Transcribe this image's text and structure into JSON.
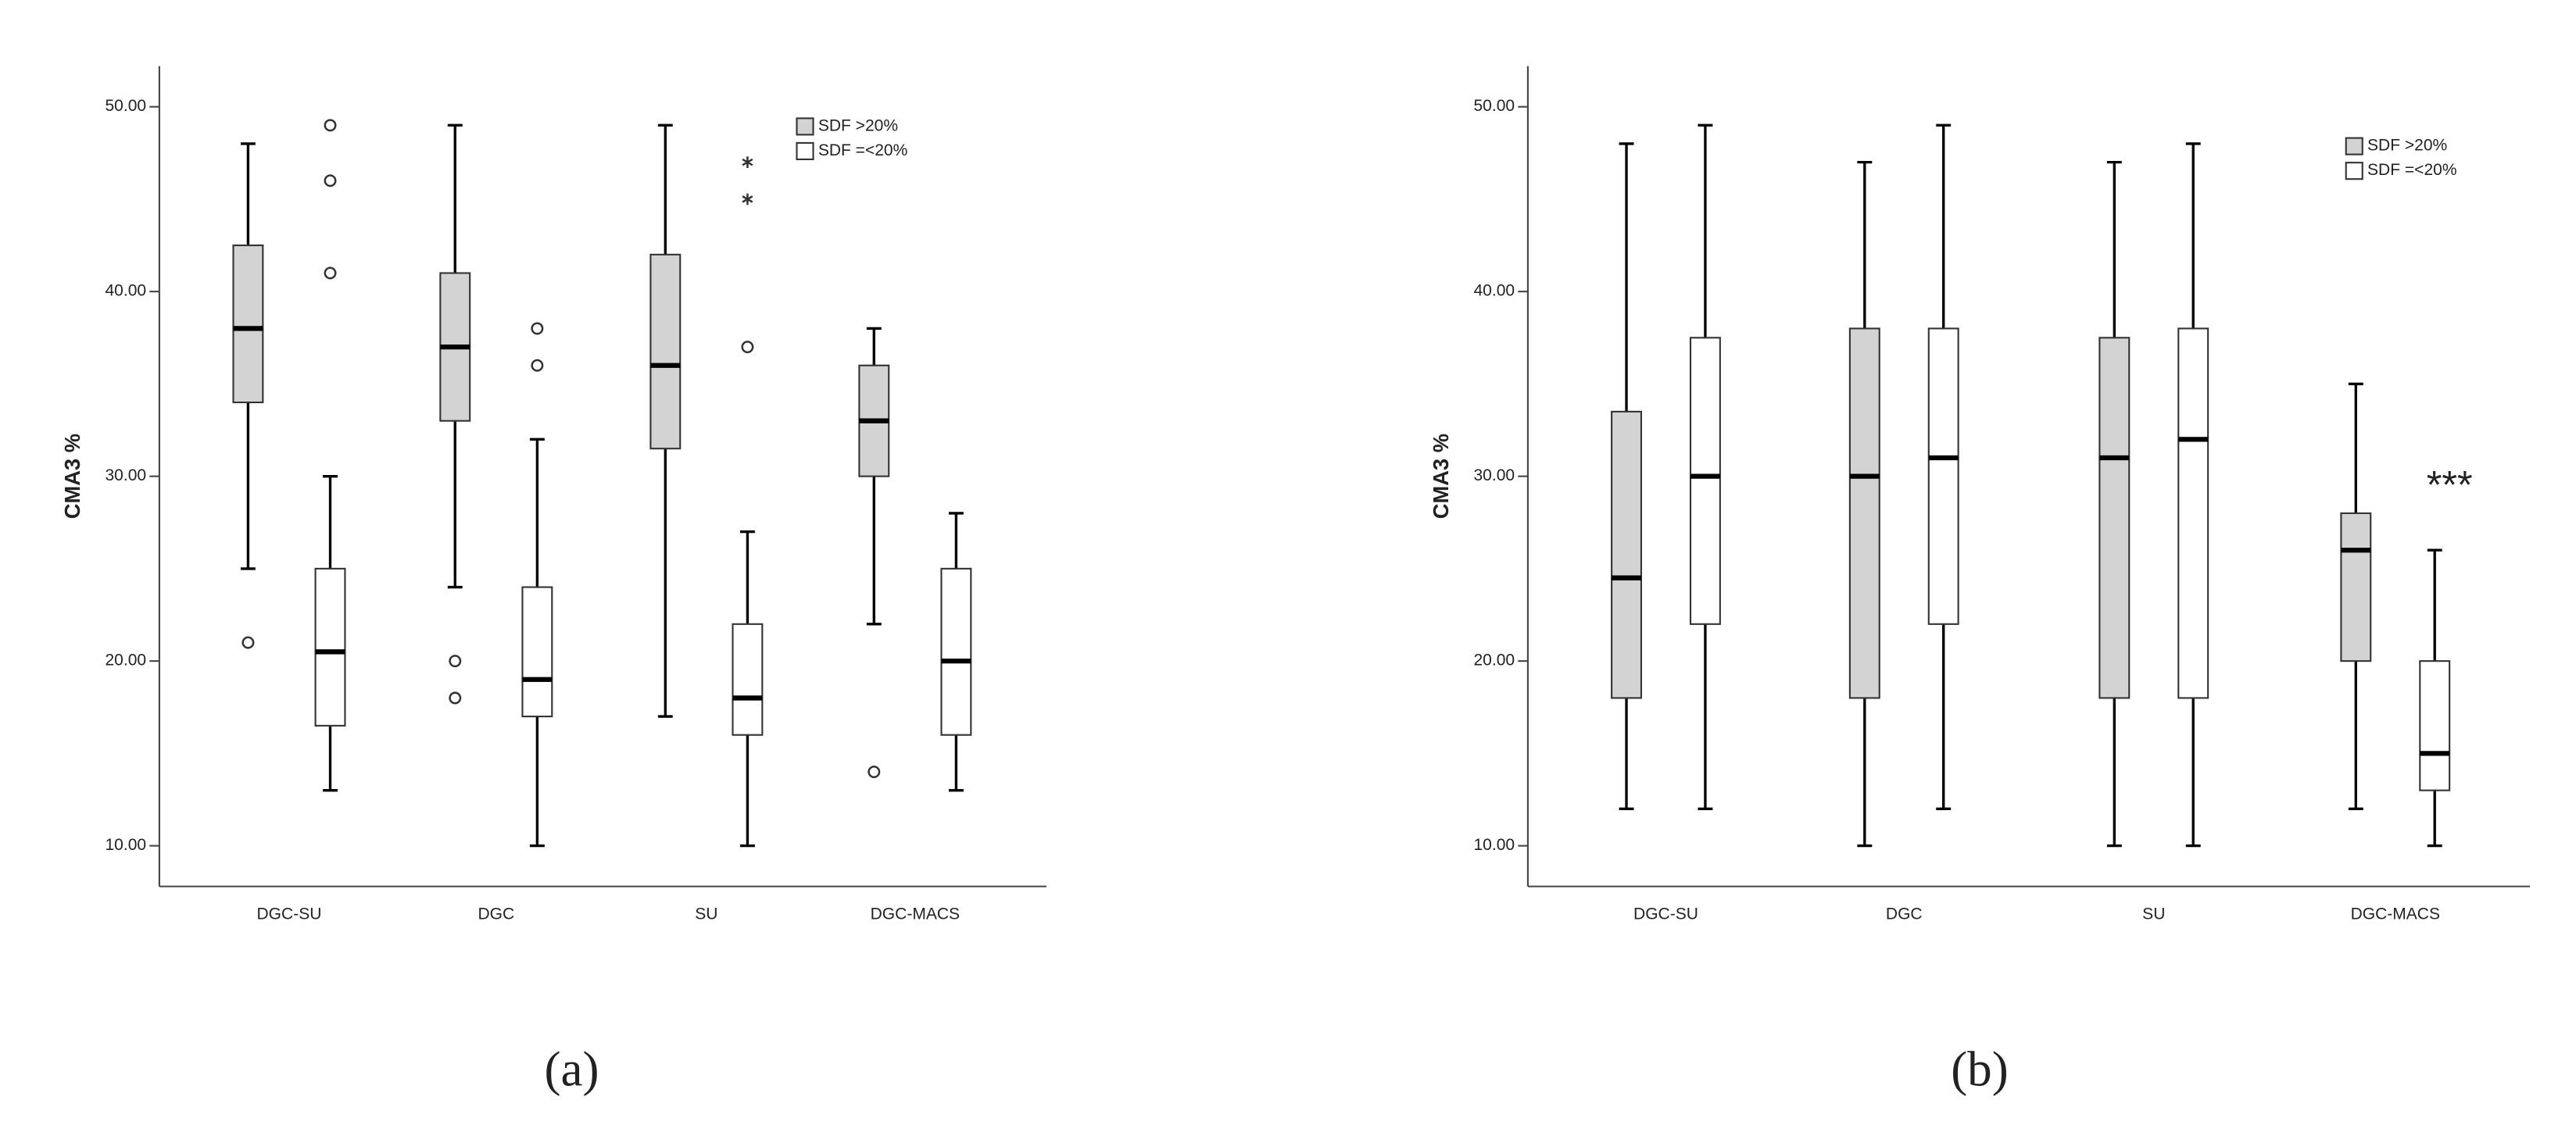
{
  "chart_data": [
    {
      "type": "box",
      "panel_label": "(a)",
      "y_label": "CMA3 %",
      "categories": [
        "DGC-SU",
        "DGC",
        "SU",
        "DGC-MACS"
      ],
      "ylim": [
        7.8,
        52.2
      ],
      "yticks": [
        {
          "value": 10,
          "label": "10.00"
        },
        {
          "value": 20,
          "label": "20.00"
        },
        {
          "value": 30,
          "label": "30.00"
        },
        {
          "value": 40,
          "label": "40.00"
        },
        {
          "value": 50,
          "label": "50.00"
        }
      ],
      "legend": "upper right",
      "series": [
        {
          "name": "SDF >20%",
          "color": "#d3d3d3",
          "boxes": [
            {
              "min": 25,
              "q1": 34,
              "median": 38,
              "q3": 42.5,
              "max": 48,
              "outliers": [
                21
              ]
            },
            {
              "min": 24,
              "q1": 33,
              "median": 37,
              "q3": 41,
              "max": 49,
              "outliers": [
                20,
                18
              ]
            },
            {
              "min": 17,
              "q1": 31.5,
              "median": 36,
              "q3": 42,
              "max": 49
            },
            {
              "min": 22,
              "q1": 30,
              "median": 33,
              "q3": 36,
              "max": 38,
              "outliers": [
                14
              ]
            }
          ]
        },
        {
          "name": "SDF =<20%",
          "color": "#ffffff",
          "boxes": [
            {
              "min": 13,
              "q1": 16.5,
              "median": 20.5,
              "q3": 25,
              "max": 30,
              "outliers": [
                49,
                46,
                41
              ]
            },
            {
              "min": 10,
              "q1": 17,
              "median": 19,
              "q3": 24,
              "max": 32,
              "outliers": [
                38,
                36
              ]
            },
            {
              "min": 10,
              "q1": 16,
              "median": 18,
              "q3": 22,
              "max": 27,
              "outliers": [
                37
              ],
              "extremes": [
                47,
                45
              ]
            },
            {
              "min": 13,
              "q1": 16,
              "median": 20,
              "q3": 25,
              "max": 28
            }
          ]
        }
      ]
    },
    {
      "type": "box",
      "panel_label": "(b)",
      "y_label": "CMA3 %",
      "categories": [
        "DGC-SU",
        "DGC",
        "SU",
        "DGC-MACS"
      ],
      "ylim": [
        7.8,
        52.2
      ],
      "yticks": [
        {
          "value": 10,
          "label": "10.00"
        },
        {
          "value": 20,
          "label": "20.00"
        },
        {
          "value": 30,
          "label": "30.00"
        },
        {
          "value": 40,
          "label": "40.00"
        },
        {
          "value": 50,
          "label": "50.00"
        }
      ],
      "legend": "upper right",
      "annotation": "***",
      "series": [
        {
          "name": "SDF >20%",
          "color": "#d3d3d3",
          "boxes": [
            {
              "min": 12,
              "q1": 18,
              "median": 24.5,
              "q3": 33.5,
              "max": 48
            },
            {
              "min": 10,
              "q1": 18,
              "median": 30,
              "q3": 38,
              "max": 47
            },
            {
              "min": 10,
              "q1": 18,
              "median": 31,
              "q3": 37.5,
              "max": 47
            },
            {
              "min": 12,
              "q1": 20,
              "median": 26,
              "q3": 28,
              "max": 35
            }
          ]
        },
        {
          "name": "SDF =<20%",
          "color": "#ffffff",
          "boxes": [
            {
              "min": 12,
              "q1": 22,
              "median": 30,
              "q3": 37.5,
              "max": 49
            },
            {
              "min": 12,
              "q1": 22,
              "median": 31,
              "q3": 38,
              "max": 49
            },
            {
              "min": 10,
              "q1": 18,
              "median": 32,
              "q3": 38,
              "max": 48
            },
            {
              "min": 10,
              "q1": 13,
              "median": 15,
              "q3": 20,
              "max": 26
            }
          ]
        }
      ]
    }
  ]
}
